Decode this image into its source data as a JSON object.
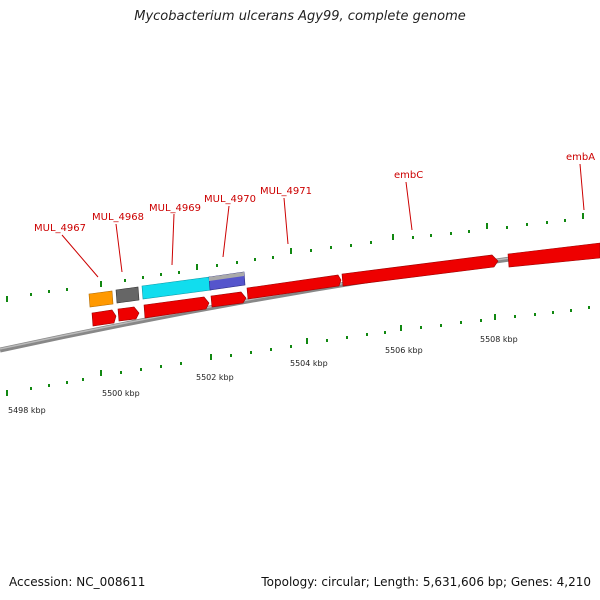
{
  "title": "Mycobacterium ulcerans Agy99, complete genome",
  "footer": {
    "accession": "Accession: NC_008611",
    "summary": "Topology: circular; Length: 5,631,606 bp; Genes: 4,210"
  },
  "colors": {
    "forward_gene": "#ee0000",
    "label": "#cc0000",
    "tick": "#118811",
    "backbone": "#888888",
    "orange_feature": "#ff9900",
    "grey_feature": "#666666",
    "cyan_feature": "#11ddee",
    "blue_feature": "#5555cc"
  },
  "gene_labels": [
    "MUL_4967",
    "MUL_4968",
    "MUL_4969",
    "MUL_4970",
    "MUL_4971",
    "embC",
    "embA"
  ],
  "scale_labels": [
    "5498 kbp",
    "5500 kbp",
    "5502 kbp",
    "5504 kbp",
    "5506 kbp",
    "5508 kbp"
  ]
}
